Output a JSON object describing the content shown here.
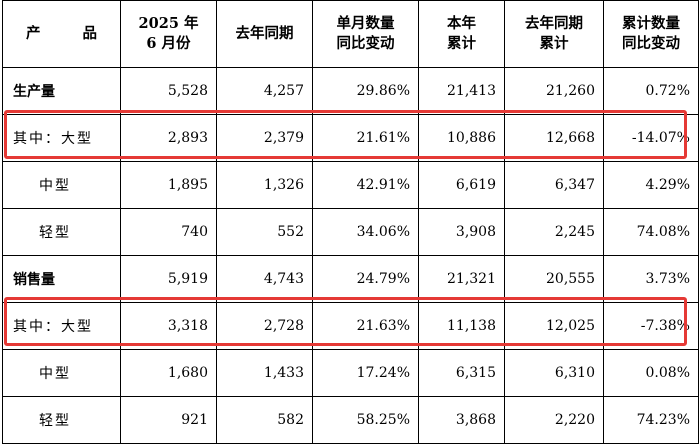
{
  "headers": {
    "product": [
      "产",
      "品"
    ],
    "month": [
      "2025 年",
      "6 月份"
    ],
    "last_year_same": "去年同期",
    "monthly_change": [
      "单月数量",
      "同比变动"
    ],
    "ytd": [
      "本年",
      "累计"
    ],
    "last_year_ytd": [
      "去年同期",
      "累计"
    ],
    "cumulative_change": [
      "累计数量",
      "同比变动"
    ]
  },
  "rows": [
    {
      "label": "生产量",
      "month": "5,528",
      "last_year": "4,257",
      "monthly_change": "29.86%",
      "ytd": "21,413",
      "last_ytd": "21,260",
      "cum_change": "0.72%"
    },
    {
      "label": "其中：大型",
      "month": "2,893",
      "last_year": "2,379",
      "monthly_change": "21.61%",
      "ytd": "10,886",
      "last_ytd": "12,668",
      "cum_change": "-14.07%"
    },
    {
      "label": "中型",
      "month": "1,895",
      "last_year": "1,326",
      "monthly_change": "42.91%",
      "ytd": "6,619",
      "last_ytd": "6,347",
      "cum_change": "4.29%"
    },
    {
      "label": "轻型",
      "month": "740",
      "last_year": "552",
      "monthly_change": "34.06%",
      "ytd": "3,908",
      "last_ytd": "2,245",
      "cum_change": "74.08%"
    },
    {
      "label": "销售量",
      "month": "5,919",
      "last_year": "4,743",
      "monthly_change": "24.79%",
      "ytd": "21,321",
      "last_ytd": "20,555",
      "cum_change": "3.73%"
    },
    {
      "label": "其中：大型",
      "month": "3,318",
      "last_year": "2,728",
      "monthly_change": "21.63%",
      "ytd": "11,138",
      "last_ytd": "12,025",
      "cum_change": "-7.38%"
    },
    {
      "label": "中型",
      "month": "1,680",
      "last_year": "1,433",
      "monthly_change": "17.24%",
      "ytd": "6,315",
      "last_ytd": "6,310",
      "cum_change": "0.08%"
    },
    {
      "label": "轻型",
      "month": "921",
      "last_year": "582",
      "monthly_change": "58.25%",
      "ytd": "3,868",
      "last_ytd": "2,220",
      "cum_change": "74.23%"
    }
  ],
  "highlight_color": "#e53935"
}
